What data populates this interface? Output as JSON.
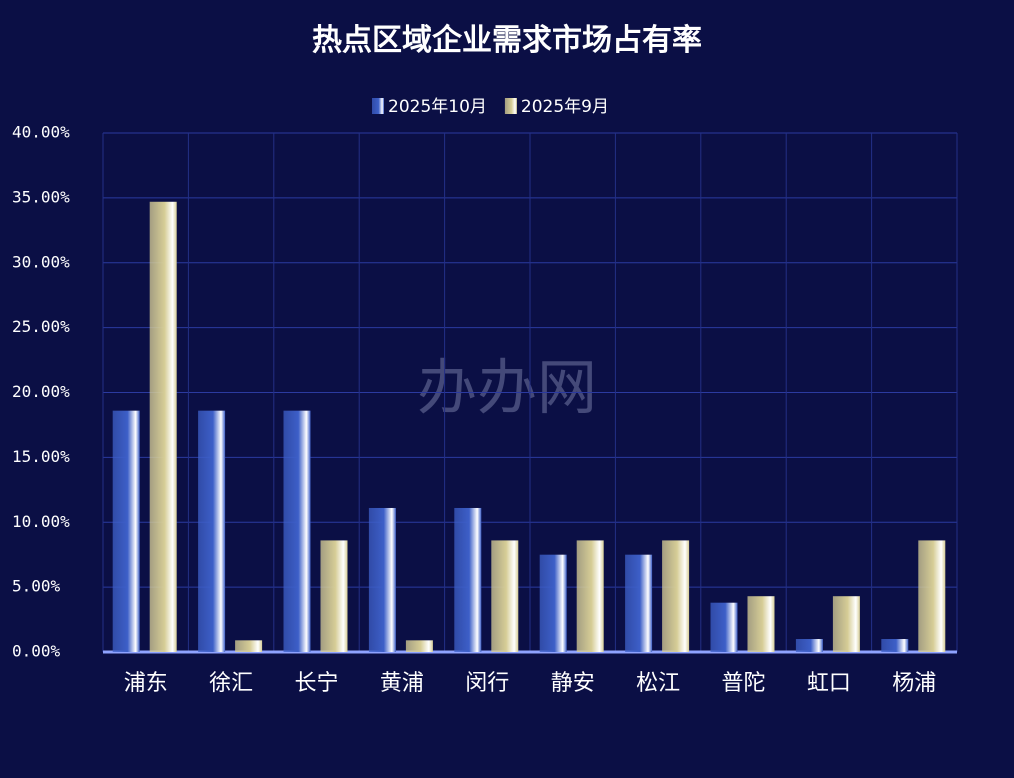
{
  "chart_data": {
    "type": "bar",
    "title": "热点区域企业需求市场占有率",
    "watermark": "办办网",
    "categories": [
      "浦东",
      "徐汇",
      "长宁",
      "黄浦",
      "闵行",
      "静安",
      "松江",
      "普陀",
      "虹口",
      "杨浦"
    ],
    "series": [
      {
        "name": "2025年10月",
        "color": "#3d5fc8",
        "values": [
          18.6,
          18.6,
          18.6,
          11.1,
          11.1,
          7.5,
          7.5,
          3.8,
          1.0,
          1.0
        ]
      },
      {
        "name": "2025年9月",
        "color": "#d6cd96",
        "values": [
          34.7,
          0.9,
          8.6,
          0.9,
          8.6,
          8.6,
          8.6,
          4.3,
          4.3,
          8.6
        ]
      }
    ],
    "ylim": [
      0,
      40
    ],
    "yticks": [
      {
        "value": 0,
        "label": "0.00%"
      },
      {
        "value": 5,
        "label": "5.00%"
      },
      {
        "value": 10,
        "label": "10.00%"
      },
      {
        "value": 15,
        "label": "15.00%"
      },
      {
        "value": 20,
        "label": "20.00%"
      },
      {
        "value": 25,
        "label": "25.00%"
      },
      {
        "value": 30,
        "label": "30.00%"
      },
      {
        "value": 35,
        "label": "35.00%"
      },
      {
        "value": 40,
        "label": "40.00%"
      }
    ],
    "grid": true,
    "legend": "top"
  }
}
